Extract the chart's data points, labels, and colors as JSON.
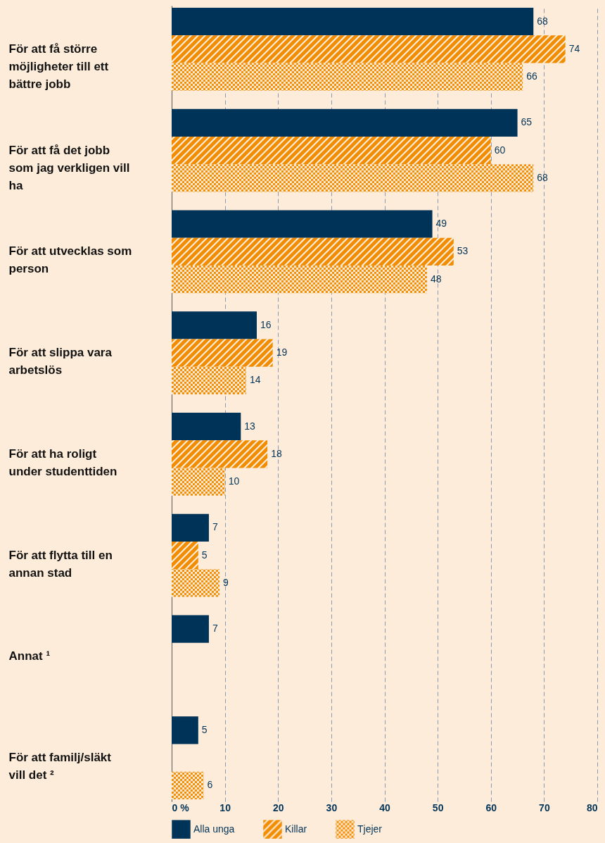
{
  "chart_data": {
    "type": "bar",
    "orientation": "horizontal",
    "categories": [
      "För att få större möjligheter till ett bättre jobb",
      "För att få det jobb som jag verkligen vill ha",
      "För att utvecklas som person",
      "För att slippa vara arbetslös",
      "För att ha roligt under studenttiden",
      "För att flytta till en annan stad",
      "Annat ¹",
      "För att familj/släkt vill det ²"
    ],
    "series": [
      {
        "name": "Alla unga",
        "color": "#003358",
        "values": [
          68,
          65,
          49,
          16,
          13,
          7,
          7,
          5
        ]
      },
      {
        "name": "Killar",
        "color": "#f28c00",
        "values": [
          74,
          60,
          53,
          19,
          18,
          5,
          null,
          null
        ]
      },
      {
        "name": "Tjejer",
        "color": "#f28c00",
        "values": [
          66,
          68,
          48,
          14,
          10,
          9,
          null,
          6
        ]
      }
    ],
    "xlim": [
      0,
      80
    ],
    "xticks": [
      {
        "value": 0,
        "label": "0 %"
      },
      10,
      20,
      30,
      40,
      50,
      60,
      70,
      80
    ],
    "grid": "x",
    "data_labels": true,
    "legend": "bottom"
  }
}
